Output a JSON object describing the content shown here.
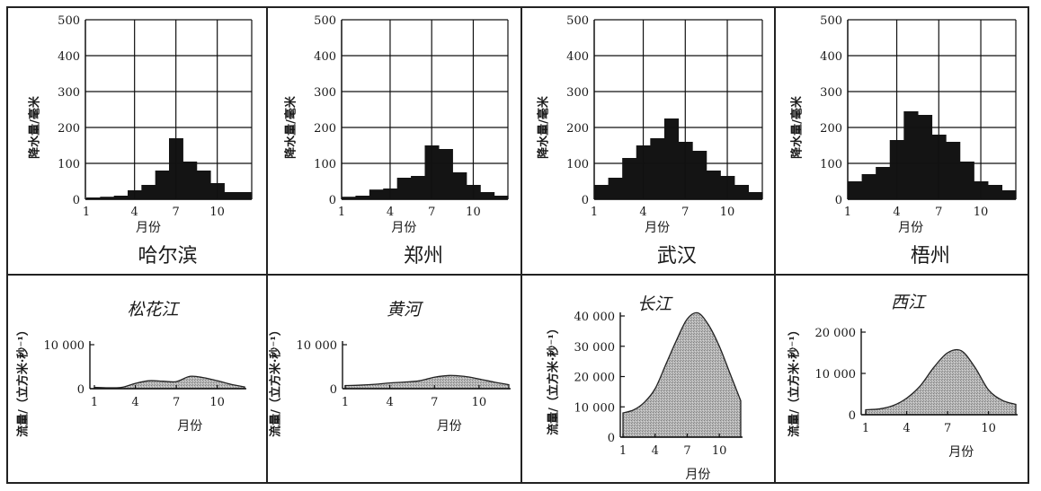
{
  "chart_data": [
    {
      "type": "bar",
      "title": "哈尔滨",
      "xlabel": "月份",
      "ylabel": "降水量/毫米",
      "ylim": [
        0,
        500
      ],
      "yticks": [
        0,
        100,
        200,
        300,
        400,
        500
      ],
      "xticks": [
        "1",
        "4",
        "7",
        "10"
      ],
      "grid": true,
      "categories": [
        1,
        2,
        3,
        4,
        5,
        6,
        7,
        8,
        9,
        10,
        11,
        12
      ],
      "values": [
        5,
        7,
        10,
        25,
        40,
        80,
        170,
        105,
        80,
        45,
        20,
        20
      ]
    },
    {
      "type": "bar",
      "title": "郑州",
      "xlabel": "月份",
      "ylabel": "降水量/毫米",
      "ylim": [
        0,
        500
      ],
      "yticks": [
        0,
        100,
        200,
        300,
        400,
        500
      ],
      "xticks": [
        "1",
        "4",
        "7",
        "10"
      ],
      "grid": true,
      "categories": [
        1,
        2,
        3,
        4,
        5,
        6,
        7,
        8,
        9,
        10,
        11,
        12
      ],
      "values": [
        7,
        10,
        27,
        30,
        60,
        65,
        150,
        140,
        75,
        40,
        20,
        10
      ]
    },
    {
      "type": "bar",
      "title": "武汉",
      "xlabel": "月份",
      "ylabel": "降水量/毫米",
      "ylim": [
        0,
        500
      ],
      "yticks": [
        0,
        100,
        200,
        300,
        400,
        500
      ],
      "xticks": [
        "1",
        "4",
        "7",
        "10"
      ],
      "grid": true,
      "categories": [
        1,
        2,
        3,
        4,
        5,
        6,
        7,
        8,
        9,
        10,
        11,
        12
      ],
      "values": [
        40,
        60,
        115,
        150,
        170,
        225,
        160,
        135,
        80,
        65,
        40,
        20
      ]
    },
    {
      "type": "bar",
      "title": "梧州",
      "xlabel": "月份",
      "ylabel": "降水量/毫米",
      "ylim": [
        0,
        500
      ],
      "yticks": [
        0,
        100,
        200,
        300,
        400,
        500
      ],
      "xticks": [
        "1",
        "4",
        "7",
        "10"
      ],
      "grid": true,
      "categories": [
        1,
        2,
        3,
        4,
        5,
        6,
        7,
        8,
        9,
        10,
        11,
        12
      ],
      "values": [
        50,
        70,
        90,
        165,
        245,
        235,
        180,
        160,
        105,
        50,
        40,
        25
      ]
    },
    {
      "type": "area",
      "title": "松花江",
      "xlabel": "月份",
      "ylabel": "流量/（立方米·秒⁻¹）",
      "ylim": [
        0,
        10000
      ],
      "yticks": [
        0,
        10000
      ],
      "ytick_labels": [
        "0",
        "10 000"
      ],
      "xlim": [
        1,
        12
      ],
      "xticks": [
        "1",
        "4",
        "7",
        "10"
      ],
      "grid": false,
      "x": [
        1,
        2,
        3,
        4,
        5,
        6,
        7,
        8,
        9,
        10,
        11,
        12
      ],
      "values": [
        300,
        200,
        300,
        1200,
        1800,
        1700,
        1600,
        2800,
        2500,
        1800,
        1000,
        400
      ]
    },
    {
      "type": "area",
      "title": "黄河",
      "xlabel": "月份",
      "ylabel": "流量/（立方米·秒⁻¹）",
      "ylim": [
        0,
        10000
      ],
      "yticks": [
        0,
        10000
      ],
      "ytick_labels": [
        "0",
        "10 000"
      ],
      "xlim": [
        1,
        12
      ],
      "xticks": [
        "1",
        "4",
        "7",
        "10"
      ],
      "grid": false,
      "x": [
        1,
        2,
        3,
        4,
        5,
        6,
        7,
        8,
        9,
        10,
        11,
        12
      ],
      "values": [
        700,
        800,
        1000,
        1300,
        1500,
        1800,
        2600,
        3000,
        2800,
        2200,
        1500,
        900
      ]
    },
    {
      "type": "area",
      "title": "长江",
      "xlabel": "月份",
      "ylabel": "流量/（立方米·秒⁻¹）",
      "ylim": [
        0,
        40000
      ],
      "yticks": [
        0,
        10000,
        20000,
        30000,
        40000
      ],
      "ytick_labels": [
        "0",
        "10 000",
        "20 000",
        "30 000",
        "40 000"
      ],
      "xlim": [
        1,
        12
      ],
      "xticks": [
        "1",
        "4",
        "7",
        "10"
      ],
      "grid": false,
      "x": [
        1,
        2,
        3,
        4,
        5,
        6,
        7,
        8,
        9,
        10,
        11,
        12
      ],
      "values": [
        8000,
        9000,
        11500,
        16000,
        24000,
        32000,
        39000,
        41000,
        37000,
        30000,
        21000,
        12000
      ]
    },
    {
      "type": "area",
      "title": "西江",
      "xlabel": "月份",
      "ylabel": "流量/（立方米·秒⁻¹）",
      "ylim": [
        0,
        20000
      ],
      "yticks": [
        0,
        10000,
        20000
      ],
      "ytick_labels": [
        "0",
        "10 000",
        "20 000"
      ],
      "xlim": [
        1,
        12
      ],
      "xticks": [
        "1",
        "4",
        "7",
        "10"
      ],
      "grid": false,
      "x": [
        1,
        2,
        3,
        4,
        5,
        6,
        7,
        8,
        9,
        10,
        11,
        12
      ],
      "values": [
        1200,
        1400,
        2200,
        4000,
        7000,
        11500,
        15000,
        15500,
        11500,
        6000,
        3500,
        2500
      ]
    }
  ]
}
